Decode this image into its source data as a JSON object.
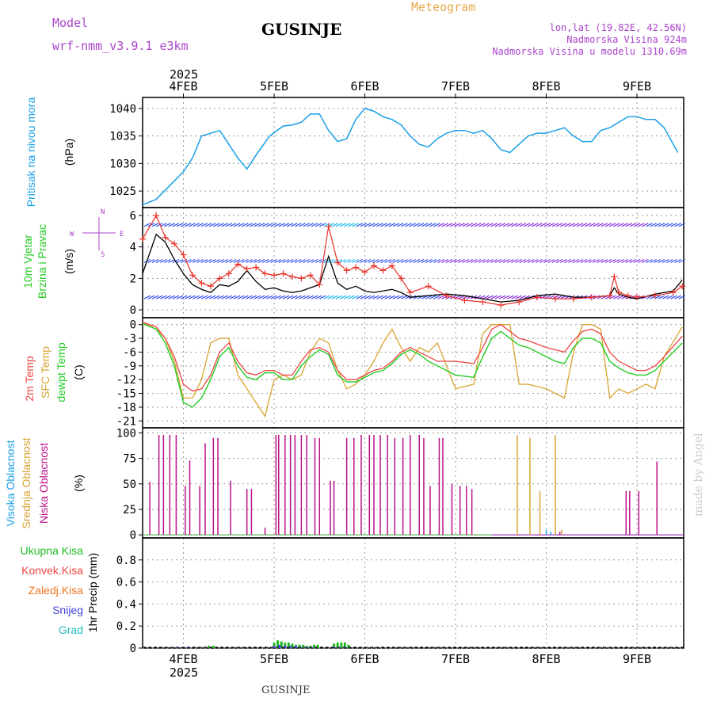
{
  "header": {
    "model_label": "Model",
    "model_name": "wrf-nmm_v3.9.1 e3km",
    "title": "GUSINJE",
    "subtitle": "Meteogram",
    "lonlat": "lon,lat (19.82E, 42.56N)",
    "elevation": "Nadmorska Visina 924m",
    "model_elevation": "Nadmorska Visina u modelu 1310.69m",
    "year_top": "2025",
    "year_bottom": "2025",
    "footer_title": "GUSINJE",
    "watermark": "made by Angel"
  },
  "colors": {
    "pressure": "#1aa0e6",
    "wind_black": "#000000",
    "wind_red": "#e8332a",
    "temp_red": "#ee4444",
    "sfc": "#d9a330",
    "dew": "#22cc22",
    "cloud_high": "#1aa0e6",
    "cloud_mid": "#d9a330",
    "cloud_low": "#bb1188",
    "precip_total": "#22bb22",
    "precip_conv": "#ee4444",
    "precip_frz": "#ee7722",
    "precip_snow": "#4444dd",
    "precip_grad": "#22bbbb",
    "label_purple": "#aa44cc",
    "label_orange": "#e8a84a"
  },
  "chart_data": [
    {
      "type": "line",
      "name": "pressure",
      "title": "Pritisak na nivou mora",
      "ylabel": "(hPa)",
      "x_days": [
        "4FEB",
        "5FEB",
        "6FEB",
        "7FEB",
        "8FEB",
        "9FEB"
      ],
      "ylim": [
        1022,
        1042
      ],
      "yticks": [
        "1025",
        "1030",
        "1035",
        "1040"
      ],
      "x": [
        3.55,
        3.7,
        3.85,
        4.0,
        4.1,
        4.2,
        4.3,
        4.4,
        4.5,
        4.6,
        4.7,
        4.8,
        4.95,
        5.1,
        5.2,
        5.3,
        5.4,
        5.5,
        5.6,
        5.7,
        5.8,
        5.9,
        6.0,
        6.1,
        6.2,
        6.3,
        6.4,
        6.5,
        6.6,
        6.7,
        6.8,
        6.9,
        7.0,
        7.1,
        7.2,
        7.3,
        7.4,
        7.5,
        7.6,
        7.7,
        7.8,
        7.9,
        8.0,
        8.1,
        8.2,
        8.3,
        8.4,
        8.5,
        8.6,
        8.7,
        8.8,
        8.9,
        9.0,
        9.1,
        9.2,
        9.3,
        9.45
      ],
      "values": [
        1022.5,
        1023.5,
        1026,
        1028.5,
        1031,
        1035,
        1035.5,
        1036,
        1033.5,
        1031,
        1029,
        1031.5,
        1035,
        1036.8,
        1037,
        1037.5,
        1039,
        1039,
        1036,
        1034,
        1034.5,
        1038,
        1040,
        1039.5,
        1038.5,
        1038,
        1037,
        1035,
        1033.5,
        1033,
        1034.5,
        1035.5,
        1036,
        1036,
        1035.5,
        1036,
        1034.5,
        1032.5,
        1032,
        1033.5,
        1035,
        1035.5,
        1035.5,
        1036,
        1036.5,
        1035,
        1034,
        1034,
        1036,
        1036.5,
        1037.5,
        1038.5,
        1038.5,
        1038,
        1038,
        1036.5,
        1032
      ]
    },
    {
      "type": "line",
      "name": "wind",
      "title": "10m Vjetar",
      "title2": "Brzina i Pravac",
      "ylabel": "(m/s)",
      "ylim": [
        -0.5,
        6.5
      ],
      "yticks": [
        "0",
        "2",
        "4",
        "6"
      ],
      "compass_north": "N",
      "compass_west": "W",
      "compass_east": "E",
      "compass_south": "S",
      "wind_barb_rows": [
        5.4,
        3.1,
        0.8
      ],
      "series": [
        {
          "name": "speed",
          "x": [
            3.55,
            3.7,
            3.8,
            3.9,
            4.0,
            4.1,
            4.2,
            4.3,
            4.4,
            4.5,
            4.6,
            4.7,
            4.8,
            4.9,
            5.0,
            5.1,
            5.2,
            5.3,
            5.4,
            5.5,
            5.6,
            5.7,
            5.8,
            5.9,
            6.0,
            6.1,
            6.2,
            6.3,
            6.4,
            6.5,
            6.7,
            6.9,
            7.1,
            7.3,
            7.5,
            7.7,
            7.9,
            8.1,
            8.3,
            8.5,
            8.7,
            8.75,
            8.8,
            8.9,
            9.0,
            9.2,
            9.4,
            9.5
          ],
          "values": [
            2.3,
            4.8,
            4.3,
            3.2,
            2.3,
            1.6,
            1.3,
            1.1,
            1.6,
            1.5,
            1.8,
            2.5,
            1.8,
            1.3,
            1.4,
            1.2,
            1.1,
            1.2,
            1.4,
            1.6,
            3.4,
            1.7,
            1.3,
            1.5,
            1.2,
            1.1,
            1.2,
            1.3,
            1.1,
            0.8,
            0.9,
            1.0,
            0.9,
            0.7,
            0.5,
            0.6,
            0.9,
            1.0,
            0.8,
            0.8,
            0.9,
            1.4,
            1.0,
            0.8,
            0.7,
            1.0,
            1.2,
            1.9
          ]
        },
        {
          "name": "gust",
          "x": [
            3.55,
            3.7,
            3.8,
            3.9,
            4.0,
            4.1,
            4.2,
            4.3,
            4.4,
            4.5,
            4.6,
            4.7,
            4.8,
            4.9,
            5.0,
            5.1,
            5.2,
            5.3,
            5.4,
            5.5,
            5.6,
            5.7,
            5.8,
            5.9,
            6.0,
            6.1,
            6.2,
            6.3,
            6.4,
            6.5,
            6.7,
            6.9,
            7.1,
            7.3,
            7.5,
            7.7,
            7.9,
            8.1,
            8.3,
            8.5,
            8.7,
            8.75,
            8.8,
            8.9,
            9.0,
            9.2,
            9.4,
            9.5
          ],
          "values": [
            4.5,
            6.0,
            4.6,
            4.2,
            3.5,
            2.2,
            1.7,
            1.5,
            2.0,
            2.3,
            2.9,
            2.6,
            2.7,
            2.3,
            2.2,
            2.3,
            2.1,
            2.0,
            2.2,
            1.6,
            5.3,
            3.0,
            2.5,
            2.7,
            2.4,
            2.8,
            2.5,
            2.8,
            2.0,
            1.1,
            1.5,
            0.9,
            0.6,
            0.5,
            0.3,
            0.5,
            0.8,
            0.7,
            0.7,
            0.8,
            0.9,
            2.1,
            1.1,
            0.9,
            0.8,
            0.9,
            1.1,
            1.5
          ]
        }
      ]
    },
    {
      "type": "line",
      "name": "temperature",
      "title_temp": "2m Temp",
      "title_sfc": "SFC Temp",
      "title_dew": "dewpt Temp",
      "ylabel": "(C)",
      "ylim": [
        -22.5,
        1.5
      ],
      "yticks": [
        "0",
        "-3",
        "-6",
        "-9",
        "-12",
        "-15",
        "-18",
        "-21"
      ],
      "x": [
        3.55,
        3.7,
        3.8,
        3.9,
        4.0,
        4.1,
        4.2,
        4.3,
        4.4,
        4.5,
        4.6,
        4.7,
        4.8,
        4.9,
        5.0,
        5.1,
        5.2,
        5.3,
        5.4,
        5.5,
        5.6,
        5.7,
        5.8,
        5.9,
        6.0,
        6.1,
        6.2,
        6.3,
        6.4,
        6.5,
        6.6,
        6.7,
        6.8,
        6.9,
        7.0,
        7.2,
        7.3,
        7.4,
        7.5,
        7.6,
        7.7,
        7.8,
        8.0,
        8.1,
        8.2,
        8.3,
        8.4,
        8.5,
        8.6,
        8.7,
        8.8,
        8.9,
        9.0,
        9.1,
        9.2,
        9.3,
        9.5
      ],
      "series": [
        {
          "name": "2m Temp",
          "values": [
            0.5,
            -0.5,
            -3,
            -7,
            -13,
            -14.5,
            -14,
            -11,
            -6,
            -4,
            -8,
            -10.5,
            -11,
            -10,
            -10,
            -11,
            -11,
            -8,
            -5.5,
            -5,
            -6,
            -10,
            -12,
            -12,
            -11,
            -10,
            -9.5,
            -8,
            -6,
            -5,
            -6,
            -7,
            -8,
            -8,
            -8,
            -8.5,
            -5,
            -1,
            0,
            -1.5,
            -3,
            -3.5,
            -5,
            -5.5,
            -6,
            -3.5,
            -1.5,
            -1,
            -2,
            -6,
            -8,
            -9,
            -10,
            -10,
            -9,
            -7,
            -2.5
          ]
        },
        {
          "name": "SFC Temp",
          "values": [
            0.5,
            -1,
            -3,
            -8,
            -16,
            -16,
            -12,
            -4,
            -3,
            -3,
            -11,
            -14,
            -17,
            -20,
            -12,
            -11,
            -12,
            -11,
            -6,
            -3,
            -4,
            -10,
            -14,
            -13,
            -11,
            -8,
            -4,
            -1,
            -5,
            -8,
            -5,
            -6,
            -4,
            -9,
            -14,
            -13,
            -2,
            0,
            0,
            0,
            -13,
            -13,
            -14,
            -15,
            -16,
            -6,
            0,
            0,
            -1,
            -16,
            -14,
            -15,
            -14,
            -13,
            -14,
            -7,
            -0.5
          ]
        },
        {
          "name": "dewpt Temp",
          "values": [
            0.2,
            -1,
            -4,
            -9,
            -17,
            -18,
            -16,
            -12,
            -7,
            -5,
            -9,
            -11.5,
            -12,
            -10.5,
            -10.5,
            -12,
            -12,
            -9,
            -7,
            -5.5,
            -6.5,
            -11,
            -12.5,
            -12.5,
            -11.5,
            -10.5,
            -10,
            -8.5,
            -6.5,
            -5.5,
            -6.5,
            -8,
            -9,
            -10,
            -11,
            -11.5,
            -7,
            -3,
            -1.5,
            -3,
            -4.5,
            -5,
            -7,
            -8,
            -8.5,
            -5,
            -3,
            -3,
            -4,
            -8,
            -9.5,
            -10.5,
            -11,
            -11,
            -10,
            -8,
            -4
          ]
        }
      ]
    },
    {
      "type": "bar",
      "name": "cloud_cover",
      "title_high": "Visoka Oblacnost",
      "title_mid": "Srednja Oblacnost",
      "title_low": "Niska Oblacnost",
      "ylabel": "(%)",
      "ylim": [
        -3,
        105
      ],
      "yticks": [
        "0",
        "25",
        "50",
        "75",
        "100"
      ],
      "series": [
        {
          "name": "low",
          "x": [
            3.63,
            3.73,
            3.78,
            3.85,
            3.92,
            4.02,
            4.07,
            4.18,
            4.24,
            4.33,
            4.38,
            4.52,
            4.7,
            4.75,
            4.9,
            5.02,
            5.05,
            5.12,
            5.18,
            5.23,
            5.3,
            5.36,
            5.45,
            5.5,
            5.62,
            5.66,
            5.8,
            5.88,
            5.96,
            6.05,
            6.1,
            6.17,
            6.25,
            6.33,
            6.42,
            6.5,
            6.6,
            6.65,
            6.72,
            6.82,
            6.86,
            6.96,
            7.05,
            7.12,
            7.18,
            8.15,
            8.88,
            8.92,
            9.02,
            9.22
          ],
          "values": [
            52,
            98,
            98,
            98,
            98,
            48,
            73,
            48,
            90,
            95,
            95,
            53,
            45,
            45,
            7,
            98,
            98,
            98,
            98,
            98,
            98,
            98,
            95,
            95,
            53,
            53,
            95,
            95,
            98,
            98,
            98,
            98,
            98,
            95,
            95,
            98,
            98,
            95,
            48,
            95,
            95,
            50,
            48,
            48,
            45,
            3,
            43,
            43,
            43,
            72
          ]
        },
        {
          "name": "mid",
          "x": [
            7.68,
            7.82,
            7.93,
            8.1,
            8.17
          ],
          "values": [
            98,
            95,
            43,
            98,
            5
          ]
        },
        {
          "name": "high",
          "x": [
            8.0,
            8.05
          ],
          "values": [
            5,
            3
          ]
        }
      ]
    },
    {
      "type": "bar",
      "name": "precipitation",
      "title_total": "Ukupna Kisa",
      "title_conv": "Konvek.Kisa",
      "title_frz": "Zaledj.Kisa",
      "title_snow": "Snijeg",
      "title_grad": "Grad",
      "ylabel": "1hr Precip (mm)",
      "ylim": [
        0,
        1.0
      ],
      "yticks": [
        "0",
        "0.2",
        "0.4",
        "0.6",
        "0.8"
      ],
      "series": [
        {
          "name": "total",
          "x": [
            4.28,
            4.33,
            5.0,
            5.04,
            5.08,
            5.12,
            5.16,
            5.2,
            5.24,
            5.28,
            5.32,
            5.36,
            5.4,
            5.44,
            5.48,
            5.66,
            5.7,
            5.74,
            5.78,
            5.82
          ],
          "values": [
            0.02,
            0.02,
            0.05,
            0.07,
            0.06,
            0.05,
            0.05,
            0.04,
            0.03,
            0.03,
            0.03,
            0.02,
            0.02,
            0.03,
            0.03,
            0.04,
            0.05,
            0.05,
            0.05,
            0.03
          ]
        },
        {
          "name": "snow",
          "x": [
            3.94,
            4.05,
            5.0,
            5.06,
            5.12,
            5.18,
            5.24,
            5.3,
            5.36,
            5.42,
            5.66,
            5.72,
            5.78
          ],
          "values": [
            0.01,
            0.01,
            0.02,
            0.03,
            0.02,
            0.02,
            0.02,
            0.01,
            0.01,
            0.01,
            0.01,
            0.01,
            0.01
          ]
        }
      ]
    }
  ]
}
